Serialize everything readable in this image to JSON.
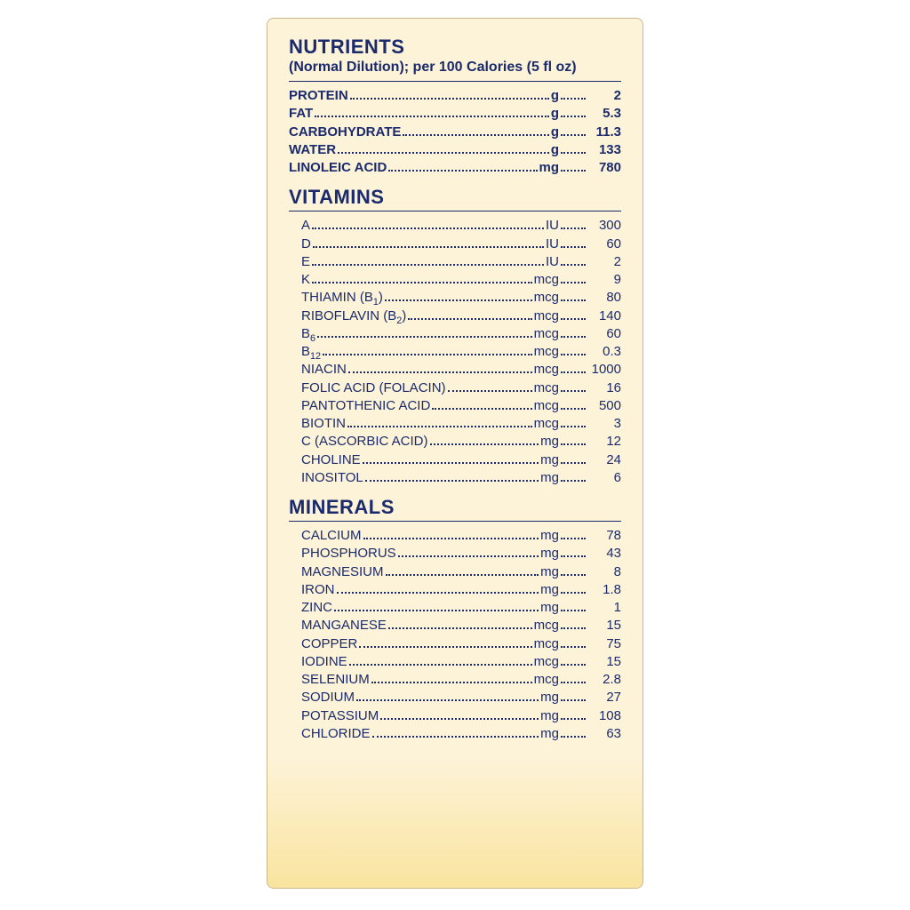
{
  "colors": {
    "text": "#1a2a6c",
    "panel_top": "#fdf3d8",
    "panel_bottom": "#f9e49f",
    "border": "#c9b88a",
    "page_bg": "#ffffff"
  },
  "header": {
    "title": "NUTRIENTS",
    "subtitle": "(Normal Dilution); per 100 Calories (5 fl oz)"
  },
  "sections": [
    {
      "title": null,
      "bold": true,
      "indent": false,
      "rows": [
        {
          "name": "PROTEIN",
          "unit": "g",
          "value": "2"
        },
        {
          "name": "FAT",
          "unit": "g",
          "value": "5.3"
        },
        {
          "name": "CARBOHYDRATE",
          "unit": "g",
          "value": "11.3"
        },
        {
          "name": "WATER",
          "unit": "g",
          "value": "133"
        },
        {
          "name": "LINOLEIC ACID",
          "unit": "mg",
          "value": "780"
        }
      ]
    },
    {
      "title": "VITAMINS",
      "bold": false,
      "indent": true,
      "rows": [
        {
          "name": "A",
          "unit": "IU",
          "value": "300"
        },
        {
          "name": "D",
          "unit": "IU",
          "value": "60"
        },
        {
          "name": "E",
          "unit": "IU",
          "value": "2"
        },
        {
          "name": "K",
          "unit": "mcg",
          "value": "9"
        },
        {
          "name": "THIAMIN (B₁)",
          "unit": "mcg",
          "value": "80"
        },
        {
          "name": "RIBOFLAVIN (B₂)",
          "unit": "mcg",
          "value": "140"
        },
        {
          "name": "B₆",
          "unit": "mcg",
          "value": "60"
        },
        {
          "name": "B₁₂",
          "unit": "mcg",
          "value": "0.3"
        },
        {
          "name": "NIACIN",
          "unit": "mcg",
          "value": "1000"
        },
        {
          "name": "FOLIC ACID (FOLACIN)",
          "unit": "mcg",
          "value": "16"
        },
        {
          "name": "PANTOTHENIC ACID",
          "unit": "mcg",
          "value": "500"
        },
        {
          "name": "BIOTIN",
          "unit": "mcg",
          "value": "3"
        },
        {
          "name": "C (ASCORBIC ACID)",
          "unit": "mg",
          "value": "12"
        },
        {
          "name": "CHOLINE",
          "unit": "mg",
          "value": "24"
        },
        {
          "name": "INOSITOL",
          "unit": "mg",
          "value": "6"
        }
      ]
    },
    {
      "title": "MINERALS",
      "bold": false,
      "indent": true,
      "rows": [
        {
          "name": "CALCIUM",
          "unit": "mg",
          "value": "78"
        },
        {
          "name": "PHOSPHORUS",
          "unit": "mg",
          "value": "43"
        },
        {
          "name": "MAGNESIUM",
          "unit": "mg",
          "value": "8"
        },
        {
          "name": "IRON",
          "unit": "mg",
          "value": "1.8"
        },
        {
          "name": "ZINC",
          "unit": "mg",
          "value": "1"
        },
        {
          "name": "MANGANESE",
          "unit": "mcg",
          "value": "15"
        },
        {
          "name": "COPPER",
          "unit": "mcg",
          "value": "75"
        },
        {
          "name": "IODINE",
          "unit": "mcg",
          "value": "15"
        },
        {
          "name": "SELENIUM",
          "unit": "mcg",
          "value": "2.8"
        },
        {
          "name": "SODIUM",
          "unit": "mg",
          "value": "27"
        },
        {
          "name": "POTASSIUM",
          "unit": "mg",
          "value": "108"
        },
        {
          "name": "CHLORIDE",
          "unit": "mg",
          "value": "63"
        }
      ]
    }
  ]
}
